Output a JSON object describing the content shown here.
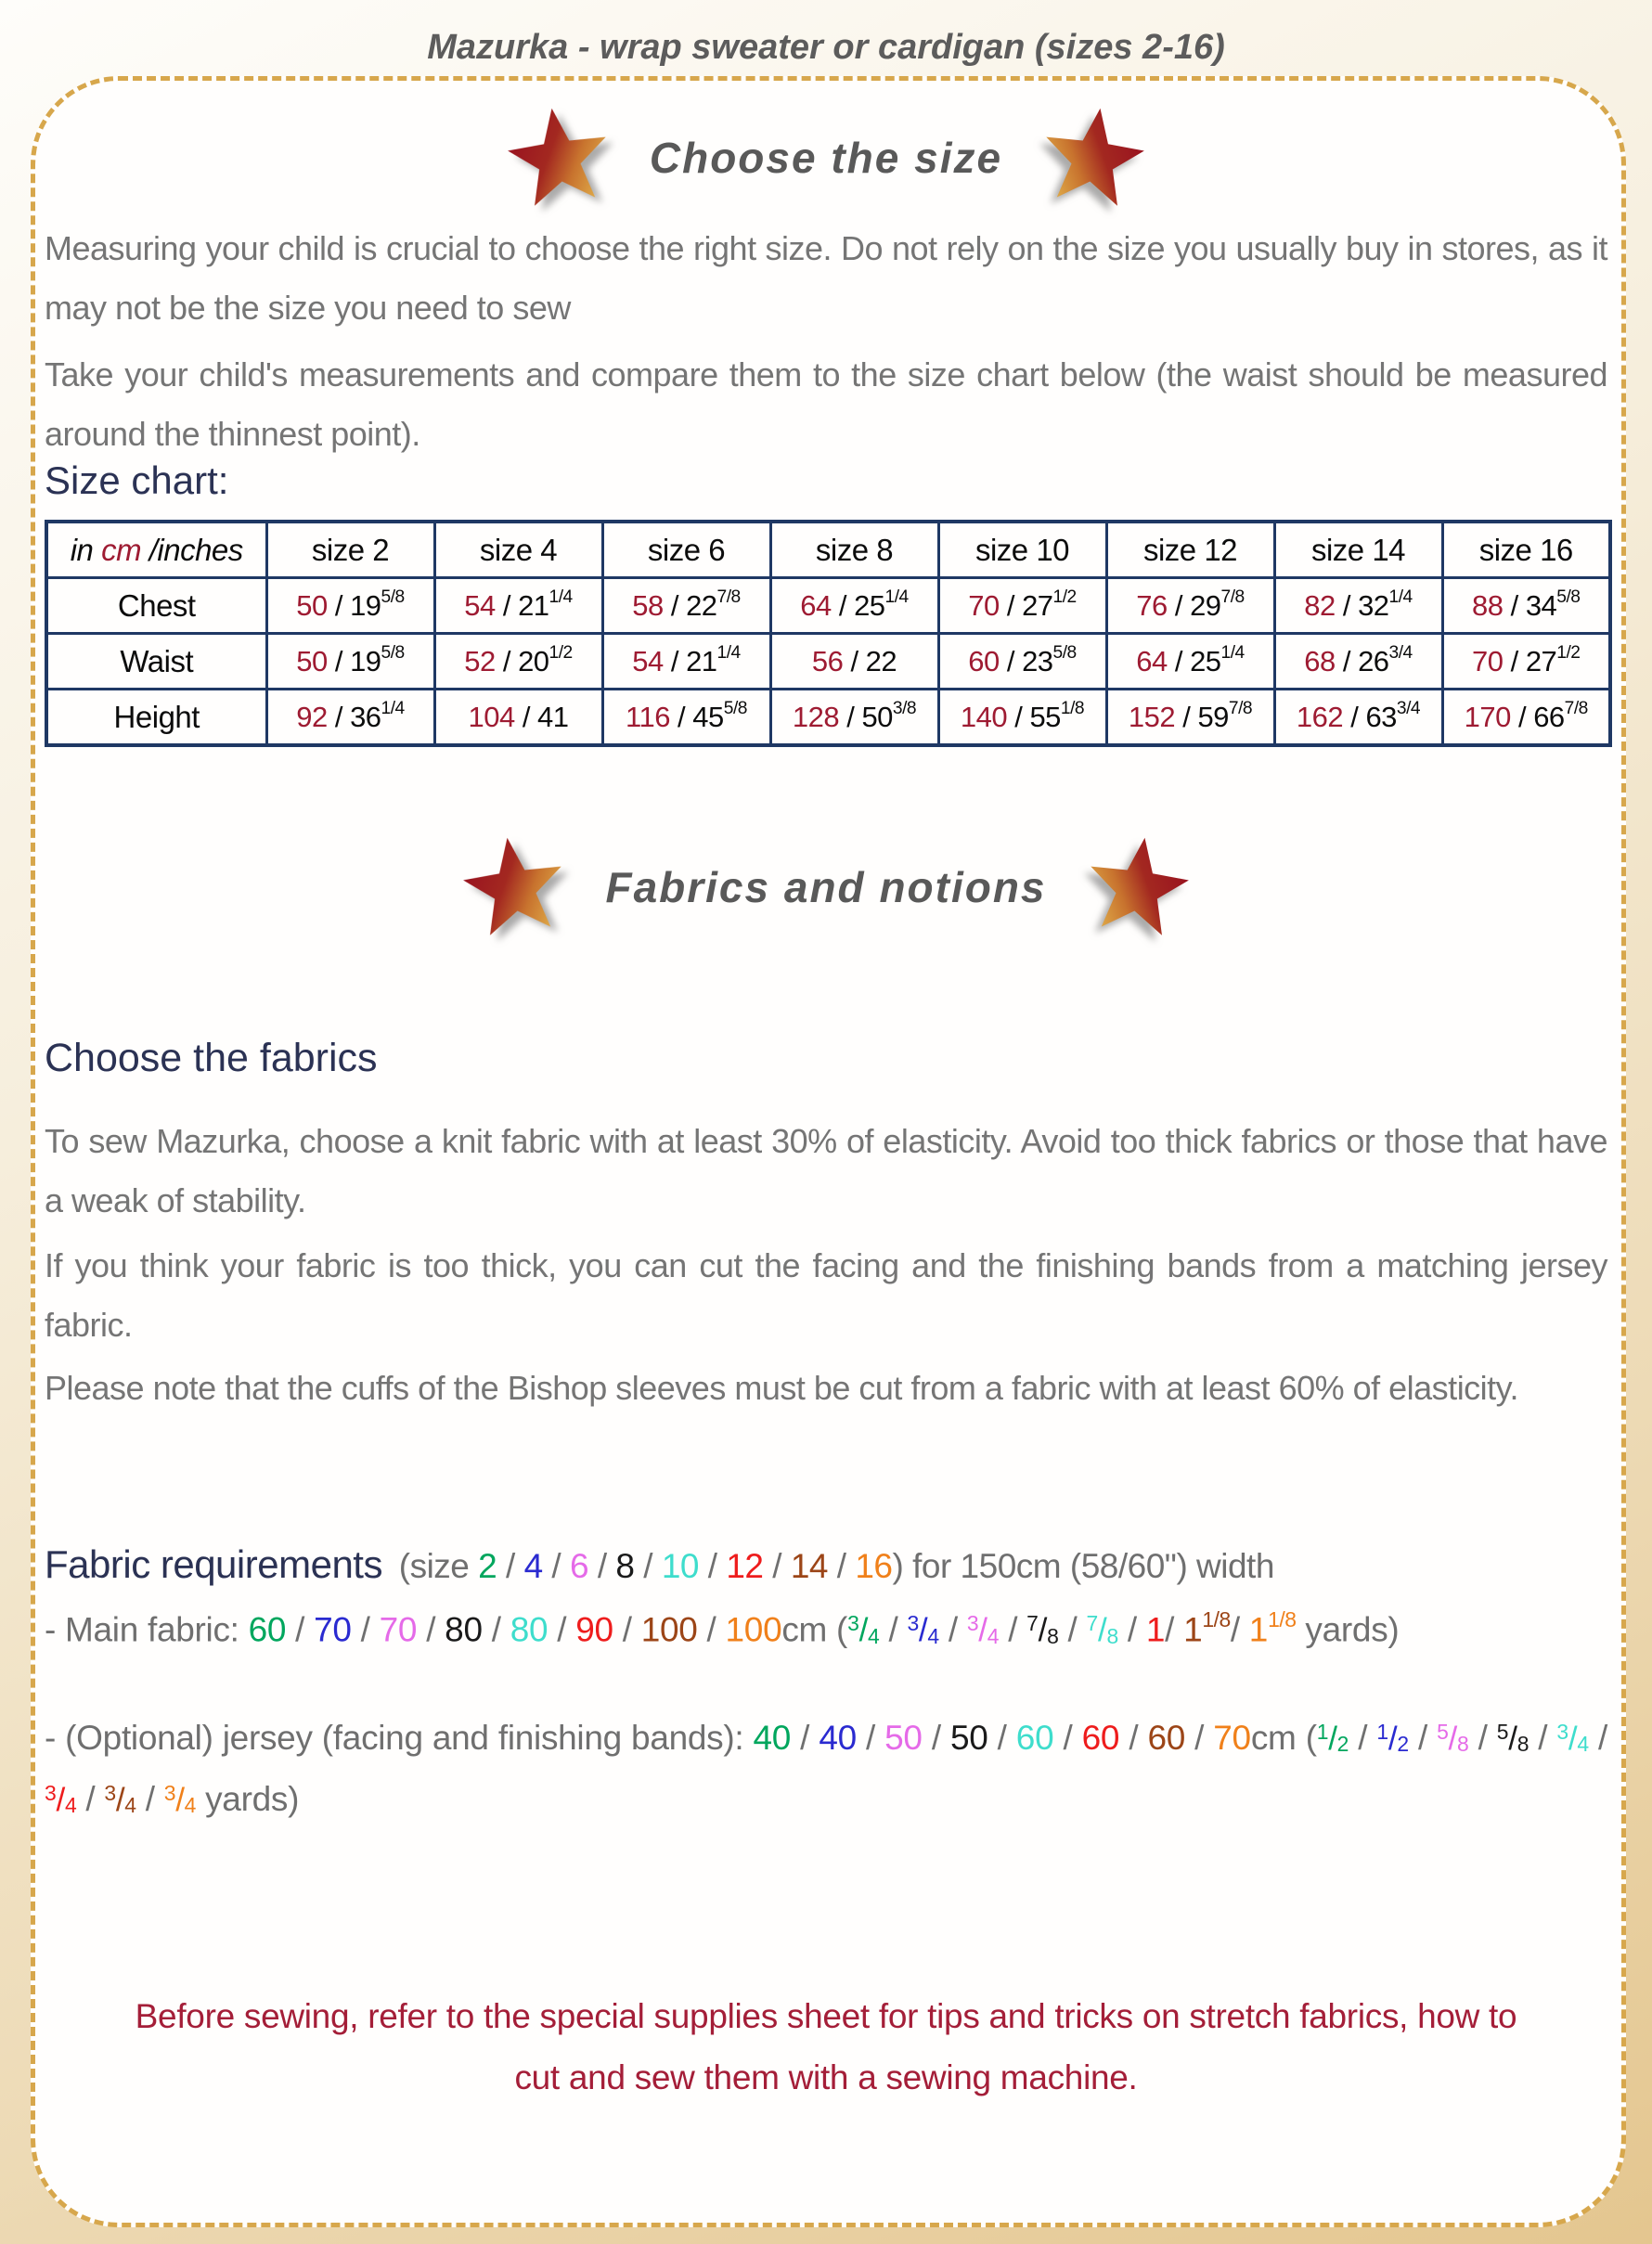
{
  "header": {
    "title": "Mazurka - wrap sweater or cardigan (sizes 2-16)"
  },
  "palette": {
    "navy": "#2b3254",
    "table_border": "#1f3864",
    "crimson": "#9e1b32",
    "note_red": "#a41e38",
    "dash_gold": "#d7a74c",
    "star_red": "#98101f",
    "star_gold": "#e2b14c",
    "size2_green": "#00a65d",
    "size4_blue": "#2a2ad0",
    "size6_magenta": "#e56ae8",
    "size8_black": "#1a1a1a",
    "size10_turquoise": "#3eddcc",
    "size12_red": "#ee1c1c",
    "size14_brown": "#9c4517",
    "size16_orange": "#f0801a"
  },
  "choose_size": {
    "heading": "Choose the size",
    "para1": "Measuring your child is crucial to choose the right size. Do not rely on the size you usually buy in stores, as it may not be the size you need to sew",
    "para2": "Take your child's measurements and compare them to the size chart below (the waist should be measured around the thinnest point).",
    "chart_label": "Size chart:"
  },
  "size_chart": {
    "unit_header": {
      "pre": "in ",
      "unit": "cm",
      "post": " /inches"
    },
    "columns": [
      "size 2",
      "size 4",
      "size 6",
      "size 8",
      "size 10",
      "size 12",
      "size 14",
      "size 16"
    ],
    "rows": [
      {
        "label": "Chest",
        "cells": [
          [
            "50",
            "19",
            "5/8"
          ],
          [
            "54",
            "21",
            "1/4"
          ],
          [
            "58",
            "22",
            "7/8"
          ],
          [
            "64",
            "25",
            "1/4"
          ],
          [
            "70",
            "27",
            "1/2"
          ],
          [
            "76",
            "29",
            "7/8"
          ],
          [
            "82",
            "32",
            "1/4"
          ],
          [
            "88",
            "34",
            "5/8"
          ]
        ]
      },
      {
        "label": "Waist",
        "cells": [
          [
            "50",
            "19",
            "5/8"
          ],
          [
            "52",
            "20",
            "1/2"
          ],
          [
            "54",
            "21",
            "1/4"
          ],
          [
            "56",
            "22",
            ""
          ],
          [
            "60",
            "23",
            "5/8"
          ],
          [
            "64",
            "25",
            "1/4"
          ],
          [
            "68",
            "26",
            "3/4"
          ],
          [
            "70",
            "27",
            "1/2"
          ]
        ]
      },
      {
        "label": "Height",
        "cells": [
          [
            "92",
            "36",
            "1/4"
          ],
          [
            "104",
            "41",
            ""
          ],
          [
            "116",
            "45",
            "5/8"
          ],
          [
            "128",
            "50",
            "3/8"
          ],
          [
            "140",
            "55",
            "1/8"
          ],
          [
            "152",
            "59",
            "7/8"
          ],
          [
            "162",
            "63",
            "3/4"
          ],
          [
            "170",
            "66",
            "7/8"
          ]
        ]
      }
    ]
  },
  "fabrics": {
    "heading": "Fabrics and notions",
    "sub_heading": "Choose the fabrics",
    "para1": "To sew Mazurka, choose a knit fabric with at least 30% of elasticity. Avoid too thick fabrics or those that have a weak of stability.",
    "para2": "If you think your fabric is too thick, you can cut the facing and the finishing bands from a matching jersey fabric.",
    "para3": "Please note that the cuffs of the Bishop sleeves must be cut from a fabric with at least 60% of elasticity.",
    "req_title": "Fabric requirements",
    "req_segments": [
      {
        "t": " (size "
      },
      {
        "t": "2",
        "c": "#00a65d"
      },
      {
        "t": " / "
      },
      {
        "t": "4",
        "c": "#2a2ad0"
      },
      {
        "t": " / "
      },
      {
        "t": "6",
        "c": "#e56ae8"
      },
      {
        "t": " / "
      },
      {
        "t": "8",
        "c": "#1a1a1a"
      },
      {
        "t": " / "
      },
      {
        "t": "10",
        "c": "#3eddcc"
      },
      {
        "t": " / "
      },
      {
        "t": "12",
        "c": "#ee1c1c"
      },
      {
        "t": " / "
      },
      {
        "t": "14",
        "c": "#9c4517"
      },
      {
        "t": " / "
      },
      {
        "t": "16",
        "c": "#f0801a"
      },
      {
        "t": ") for 150cm (58/60\") width"
      }
    ],
    "main_fabric_segments": [
      {
        "t": "- Main fabric: "
      },
      {
        "t": "60",
        "c": "#00a65d"
      },
      {
        "t": " / "
      },
      {
        "t": "70",
        "c": "#2a2ad0"
      },
      {
        "t": " / "
      },
      {
        "t": "70",
        "c": "#e56ae8"
      },
      {
        "t": " / "
      },
      {
        "t": "80",
        "c": "#1a1a1a"
      },
      {
        "t": " / "
      },
      {
        "t": "80",
        "c": "#3eddcc"
      },
      {
        "t": " / "
      },
      {
        "t": "90",
        "c": "#ee1c1c"
      },
      {
        "t": " / "
      },
      {
        "t": "100",
        "c": "#9c4517"
      },
      {
        "t": " / "
      },
      {
        "t": "100",
        "c": "#f0801a"
      },
      {
        "t": "cm ("
      },
      {
        "f": "3/4",
        "c": "#00a65d"
      },
      {
        "t": " / "
      },
      {
        "f": "3/4",
        "c": "#2a2ad0"
      },
      {
        "t": " / "
      },
      {
        "f": "3/4",
        "c": "#e56ae8"
      },
      {
        "t": " / "
      },
      {
        "f": "7/8",
        "c": "#1a1a1a"
      },
      {
        "t": " / "
      },
      {
        "f": "7/8",
        "c": "#3eddcc"
      },
      {
        "t": " / "
      },
      {
        "t": "1",
        "c": "#ee1c1c"
      },
      {
        "t": "/ "
      },
      {
        "t": "1",
        "c": "#9c4517"
      },
      {
        "sf": "1/8",
        "c": "#9c4517"
      },
      {
        "t": "/ "
      },
      {
        "t": "1",
        "c": "#f0801a"
      },
      {
        "sf": "1/8",
        "c": "#f0801a"
      },
      {
        "t": " yards)"
      }
    ],
    "jersey_segments": [
      {
        "t": "- (Optional) jersey (facing and finishing bands): "
      },
      {
        "t": "40",
        "c": "#00a65d"
      },
      {
        "t": " / "
      },
      {
        "t": "40",
        "c": "#2a2ad0"
      },
      {
        "t": " / "
      },
      {
        "t": "50",
        "c": "#e56ae8"
      },
      {
        "t": " / "
      },
      {
        "t": "50",
        "c": "#1a1a1a"
      },
      {
        "t": " / "
      },
      {
        "t": "60",
        "c": "#3eddcc"
      },
      {
        "t": " / "
      },
      {
        "t": "60",
        "c": "#ee1c1c"
      },
      {
        "t": " / "
      },
      {
        "t": "60",
        "c": "#9c4517"
      },
      {
        "t": " / "
      },
      {
        "t": "70",
        "c": "#f0801a"
      },
      {
        "t": "cm ("
      },
      {
        "f": "1/2",
        "c": "#00a65d"
      },
      {
        "t": " / "
      },
      {
        "f": "1/2",
        "c": "#2a2ad0"
      },
      {
        "t": " / "
      },
      {
        "f": "5/8",
        "c": "#e56ae8"
      },
      {
        "t": " / "
      },
      {
        "f": "5/8",
        "c": "#1a1a1a"
      },
      {
        "t": " / "
      },
      {
        "f": "3/4",
        "c": "#3eddcc"
      },
      {
        "t": " / "
      },
      {
        "f": "3/4",
        "c": "#ee1c1c"
      },
      {
        "t": " / "
      },
      {
        "f": "3/4",
        "c": "#9c4517"
      },
      {
        "t": " / "
      },
      {
        "f": "3/4",
        "c": "#f0801a"
      },
      {
        "t": " yards)"
      }
    ]
  },
  "note": {
    "line1": "Before sewing, refer to the special supplies sheet for tips and tricks on stretch fabrics, how to",
    "line2": "cut and sew them with a sewing machine."
  }
}
